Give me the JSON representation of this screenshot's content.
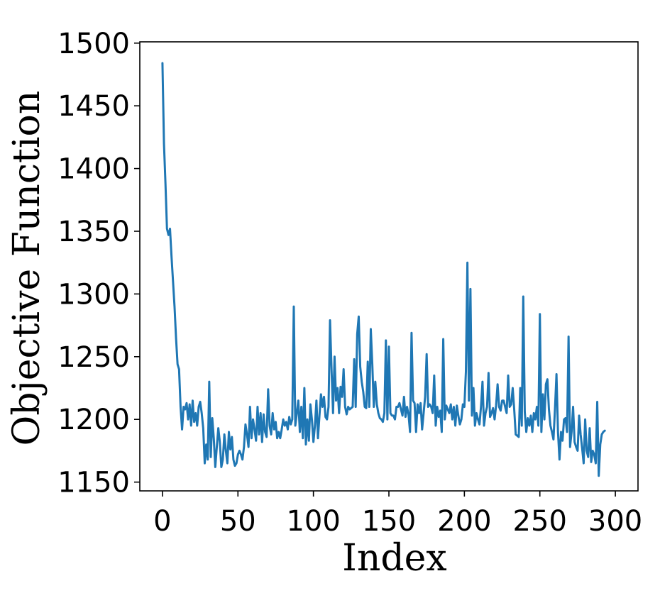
{
  "chart_data": {
    "type": "line",
    "title": "",
    "xlabel": "Index",
    "ylabel": "Objective Function",
    "xlim": [
      -15,
      315
    ],
    "ylim": [
      1143,
      1501
    ],
    "x_ticks": [
      0,
      50,
      100,
      150,
      200,
      250,
      300
    ],
    "y_ticks": [
      1150,
      1200,
      1250,
      1300,
      1350,
      1400,
      1450,
      1500
    ],
    "grid": false,
    "legend": "none",
    "series": [
      {
        "color": "#1f77b4",
        "x_start": 0,
        "x_step": 1,
        "values": [
          1484,
          1420,
          1388,
          1352,
          1347,
          1352,
          1330,
          1310,
          1290,
          1265,
          1244,
          1240,
          1210,
          1192,
          1210,
          1208,
          1213,
          1200,
          1212,
          1195,
          1215,
          1198,
          1205,
          1195,
          1210,
          1214,
          1205,
          1193,
          1165,
          1180,
          1168,
          1230,
          1170,
          1201,
          1185,
          1162,
          1178,
          1193,
          1182,
          1162,
          1168,
          1188,
          1175,
          1165,
          1190,
          1176,
          1186,
          1168,
          1163,
          1165,
          1172,
          1175,
          1172,
          1168,
          1178,
          1196,
          1188,
          1178,
          1210,
          1185,
          1200,
          1192,
          1183,
          1210,
          1188,
          1205,
          1182,
          1204,
          1190,
          1186,
          1224,
          1195,
          1188,
          1205,
          1192,
          1198,
          1185,
          1190,
          1185,
          1192,
          1200,
          1195,
          1198,
          1192,
          1202,
          1196,
          1200,
          1290,
          1195,
          1205,
          1215,
          1190,
          1210,
          1185,
          1225,
          1180,
          1200,
          1183,
          1212,
          1200,
          1182,
          1195,
          1215,
          1185,
          1203,
          1220,
          1210,
          1218,
          1202,
          1200,
          1210,
          1279,
          1240,
          1205,
          1250,
          1215,
          1225,
          1205,
          1226,
          1218,
          1240,
          1210,
          1204,
          1210,
          1208,
          1209,
          1210,
          1248,
          1210,
          1268,
          1282,
          1242,
          1230,
          1222,
          1210,
          1209,
          1246,
          1210,
          1272,
          1244,
          1210,
          1230,
          1212,
          1205,
          1201,
          1200,
          1198,
          1205,
          1263,
          1200,
          1258,
          1205,
          1203,
          1203,
          1200,
          1210,
          1210,
          1213,
          1208,
          1203,
          1218,
          1202,
          1210,
          1204,
          1190,
          1269,
          1215,
          1213,
          1190,
          1212,
          1205,
          1213,
          1192,
          1205,
          1218,
          1252,
          1210,
          1212,
          1210,
          1205,
          1235,
          1195,
          1210,
          1202,
          1207,
          1190,
          1264,
          1200,
          1211,
          1208,
          1205,
          1212,
          1200,
          1210,
          1195,
          1211,
          1203,
          1196,
          1200,
          1212,
          1210,
          1238,
          1325,
          1215,
          1304,
          1203,
          1225,
          1195,
          1205,
          1200,
          1196,
          1210,
          1230,
          1195,
          1205,
          1210,
          1237,
          1202,
          1205,
          1209,
          1200,
          1211,
          1228,
          1210,
          1207,
          1215,
          1215,
          1210,
          1205,
          1235,
          1210,
          1212,
          1225,
          1208,
          1188,
          1187,
          1186,
          1225,
          1195,
          1298,
          1206,
          1190,
          1201,
          1195,
          1203,
          1190,
          1205,
          1200,
          1210,
          1195,
          1284,
          1190,
          1220,
          1200,
          1228,
          1232,
          1208,
          1195,
          1190,
          1184,
          1208,
          1236,
          1190,
          1168,
          1190,
          1183,
          1200,
          1201,
          1190,
          1266,
          1178,
          1190,
          1210,
          1182,
          1178,
          1175,
          1203,
          1188,
          1177,
          1165,
          1200,
          1175,
          1170,
          1193,
          1166,
          1175,
          1172,
          1165,
          1214,
          1155,
          1180,
          1188,
          1190,
          1191
        ]
      }
    ]
  }
}
